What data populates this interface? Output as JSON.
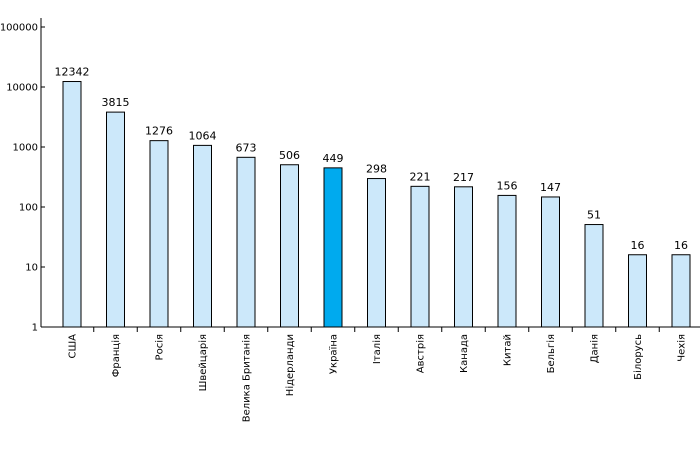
{
  "chart_data": {
    "type": "bar",
    "scale": "log",
    "ylim": [
      1,
      100000
    ],
    "yticks": [
      1,
      10,
      100,
      1000,
      10000,
      100000
    ],
    "ytick_labels": [
      "1",
      "10",
      "100",
      "1000",
      "10000",
      "100000"
    ],
    "categories": [
      "США",
      "Франція",
      "Росія",
      "Швейцарія",
      "Велика Британія",
      "Нідерланди",
      "Україна",
      "Італія",
      "Австрія",
      "Канада",
      "Китай",
      "Бельгія",
      "Данія",
      "Білорусь",
      "Чехія"
    ],
    "values": [
      12342,
      3815,
      1276,
      1064,
      673,
      506,
      449,
      298,
      221,
      217,
      156,
      147,
      51,
      16,
      16
    ],
    "value_labels": [
      "12342",
      "3815",
      "1276",
      "1064",
      "673",
      "506",
      "449",
      "298",
      "221",
      "217",
      "156",
      "147",
      "51",
      "16",
      "16"
    ],
    "highlight_index": 6,
    "colors": {
      "bar": "#cce8fa",
      "highlight": "#00aaee",
      "axis": "#000000"
    },
    "title": "",
    "xlabel": "",
    "ylabel": ""
  }
}
